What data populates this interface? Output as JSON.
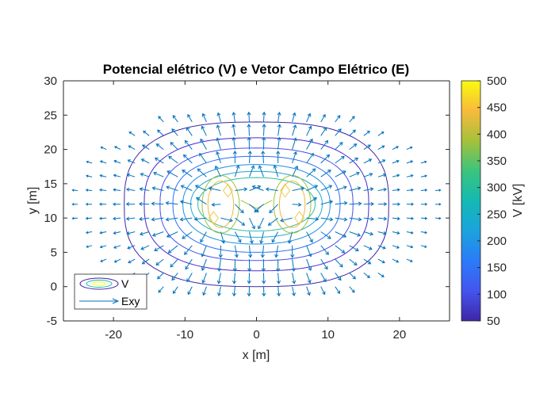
{
  "chart_data": {
    "type": "contour",
    "title": "Potencial elétrico (V) e Vetor Campo Elétrico (E)",
    "xlabel": "x [m]",
    "ylabel": "y [m]",
    "xlim": [
      -27,
      27
    ],
    "ylim": [
      -5,
      30
    ],
    "x_ticks": [
      "-20",
      "-10",
      "0",
      "10",
      "20"
    ],
    "x_tick_values": [
      -20,
      -10,
      0,
      10,
      20
    ],
    "y_ticks": [
      "-5",
      "0",
      "5",
      "10",
      "15",
      "20",
      "25",
      "30"
    ],
    "y_tick_values": [
      -5,
      0,
      5,
      10,
      15,
      20,
      25,
      30
    ],
    "grid": false,
    "legend_position": "bottom-left",
    "legend": [
      {
        "label": "V",
        "kind": "contour"
      },
      {
        "label": "Exy",
        "kind": "quiver",
        "color": "#0072BD"
      }
    ],
    "colorbar": {
      "label": "V [kV]",
      "range": [
        50,
        500
      ],
      "ticks": [
        "50",
        "100",
        "150",
        "200",
        "250",
        "300",
        "350",
        "400",
        "450",
        "500"
      ],
      "tick_values": [
        50,
        100,
        150,
        200,
        250,
        300,
        350,
        400,
        450,
        500
      ],
      "colormap": "parula"
    },
    "series": [
      {
        "name": "V",
        "contour_levels_kV": [
          50,
          100,
          150,
          200,
          250,
          300,
          350,
          400,
          450,
          500
        ]
      },
      {
        "name": "Exy",
        "grid_x": [
          -25,
          25
        ],
        "grid_y": [
          0,
          25
        ]
      }
    ],
    "sources": [
      {
        "x": -6,
        "y": 10
      },
      {
        "x": -4,
        "y": 14
      },
      {
        "x": 4,
        "y": 14
      },
      {
        "x": 6,
        "y": 10
      }
    ]
  }
}
